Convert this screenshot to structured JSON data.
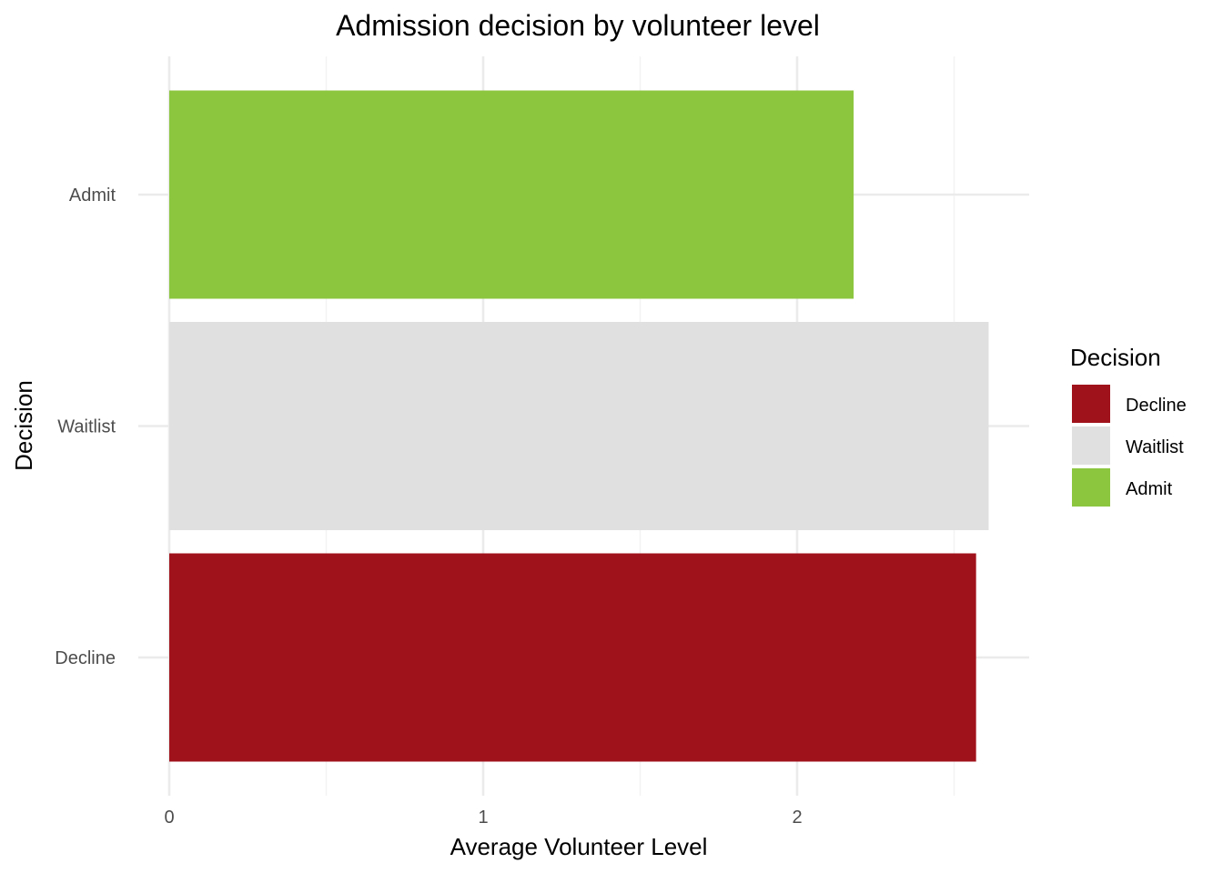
{
  "chart_data": {
    "type": "bar",
    "orientation": "horizontal",
    "title": "Admission decision by volunteer level",
    "xlabel": "Average Volunteer Level",
    "ylabel": "Decision",
    "categories": [
      "Admit",
      "Waitlist",
      "Decline"
    ],
    "values": [
      2.18,
      2.61,
      2.57
    ],
    "colors": [
      "#8cc63f",
      "#e0e0e0",
      "#a0121b"
    ],
    "xlim": [
      0,
      2.75
    ],
    "x_ticks": [
      0,
      1,
      2
    ],
    "x_tick_labels": [
      "0",
      "1",
      "2"
    ],
    "grid": true,
    "legend": {
      "title": "Decision",
      "position": "right",
      "items": [
        {
          "label": "Decline",
          "color": "#a0121b"
        },
        {
          "label": "Waitlist",
          "color": "#e0e0e0"
        },
        {
          "label": "Admit",
          "color": "#8cc63f"
        }
      ]
    }
  }
}
